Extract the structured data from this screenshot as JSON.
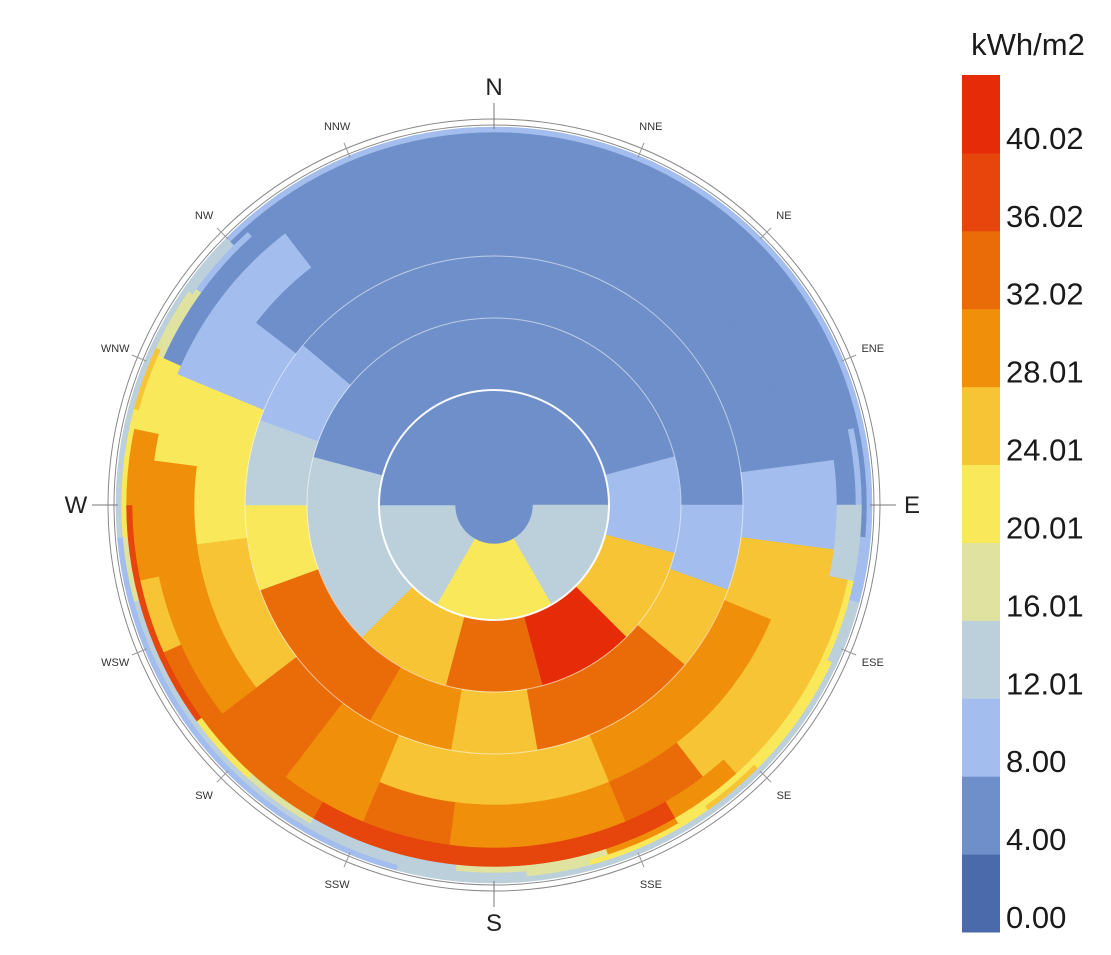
{
  "chart_data": {
    "type": "heatmap",
    "subtype": "polar-sky-dome",
    "unit_label": "kWh/m2",
    "compass": {
      "major": [
        "N",
        "E",
        "S",
        "W"
      ],
      "minor": [
        "NNE",
        "NE",
        "ENE",
        "ESE",
        "SE",
        "SSE",
        "SSW",
        "SW",
        "WSW",
        "WNW",
        "NW",
        "NNW"
      ]
    },
    "legend": {
      "ticks": [
        "0.00",
        "4.00",
        "8.00",
        "12.01",
        "16.01",
        "20.01",
        "24.01",
        "28.01",
        "32.02",
        "36.02",
        "40.02"
      ],
      "range": [
        0,
        44
      ],
      "colors": [
        "#4b6aab",
        "#6e8fc9",
        "#a2bdee",
        "#bcd0dc",
        "#dfe39f",
        "#f8e85a",
        "#f6c434",
        "#f08f0a",
        "#e96c09",
        "#e6450b",
        "#e52b07"
      ]
    },
    "rings": [
      {
        "sectors": 1,
        "values": [
          6
        ]
      },
      {
        "sectors": 6,
        "values": [
          7,
          6,
          13,
          22,
          14,
          7
        ]
      },
      {
        "sectors": 12,
        "values": [
          6,
          6,
          6,
          8,
          26,
          40,
          34,
          26,
          15,
          15,
          7,
          6
        ]
      },
      {
        "sectors": 18,
        "values": [
          6,
          6,
          6,
          6,
          6,
          9,
          27,
          33,
          34,
          27,
          28,
          32,
          33,
          22,
          15,
          10,
          7,
          6
        ]
      },
      {
        "sectors": 24,
        "values": [
          6,
          6,
          6,
          6,
          6,
          6,
          10,
          26,
          30,
          28,
          28,
          27,
          26,
          27,
          31,
          34,
          26,
          24,
          22,
          22,
          10,
          6,
          6,
          6
        ]
      },
      {
        "sectors": 24,
        "values": [
          6,
          6,
          6,
          5,
          5,
          6,
          10,
          25,
          27,
          27,
          34,
          30,
          28,
          32,
          29,
          34,
          30,
          28,
          30,
          22,
          11,
          9,
          5,
          6
        ]
      },
      {
        "sectors": 30,
        "values": [
          6,
          6,
          6,
          6,
          6,
          5,
          5,
          6,
          15,
          25,
          26,
          26,
          28,
          38,
          38,
          36,
          36,
          36,
          34,
          32,
          32,
          24,
          30,
          30,
          20,
          6,
          6,
          6,
          6,
          6
        ]
      },
      {
        "sectors": 30,
        "values": [
          6,
          6,
          6,
          7,
          7,
          7,
          6,
          9,
          15,
          21,
          23,
          23,
          22,
          28,
          19,
          17,
          12,
          14,
          17,
          22,
          39,
          37,
          37,
          28,
          21,
          16,
          9,
          7,
          6,
          6
        ]
      },
      {
        "sectors": 36,
        "values": [
          7,
          7,
          7,
          7,
          7,
          7,
          7,
          7,
          7,
          7,
          10,
          15,
          21,
          22,
          24,
          21,
          22,
          17,
          14,
          14,
          14,
          14,
          14,
          14,
          14,
          15,
          19,
          22,
          22,
          24,
          17,
          15,
          7,
          7,
          7,
          7
        ]
      },
      {
        "sectors": 36,
        "values": [
          10,
          10,
          10,
          10,
          10,
          10,
          10,
          10,
          10,
          10,
          10,
          12,
          13,
          14,
          14,
          14,
          14,
          14,
          14,
          12,
          11,
          11,
          11,
          11,
          11,
          11,
          11,
          12,
          13,
          14,
          14,
          13,
          11,
          10,
          10,
          10
        ]
      }
    ]
  }
}
